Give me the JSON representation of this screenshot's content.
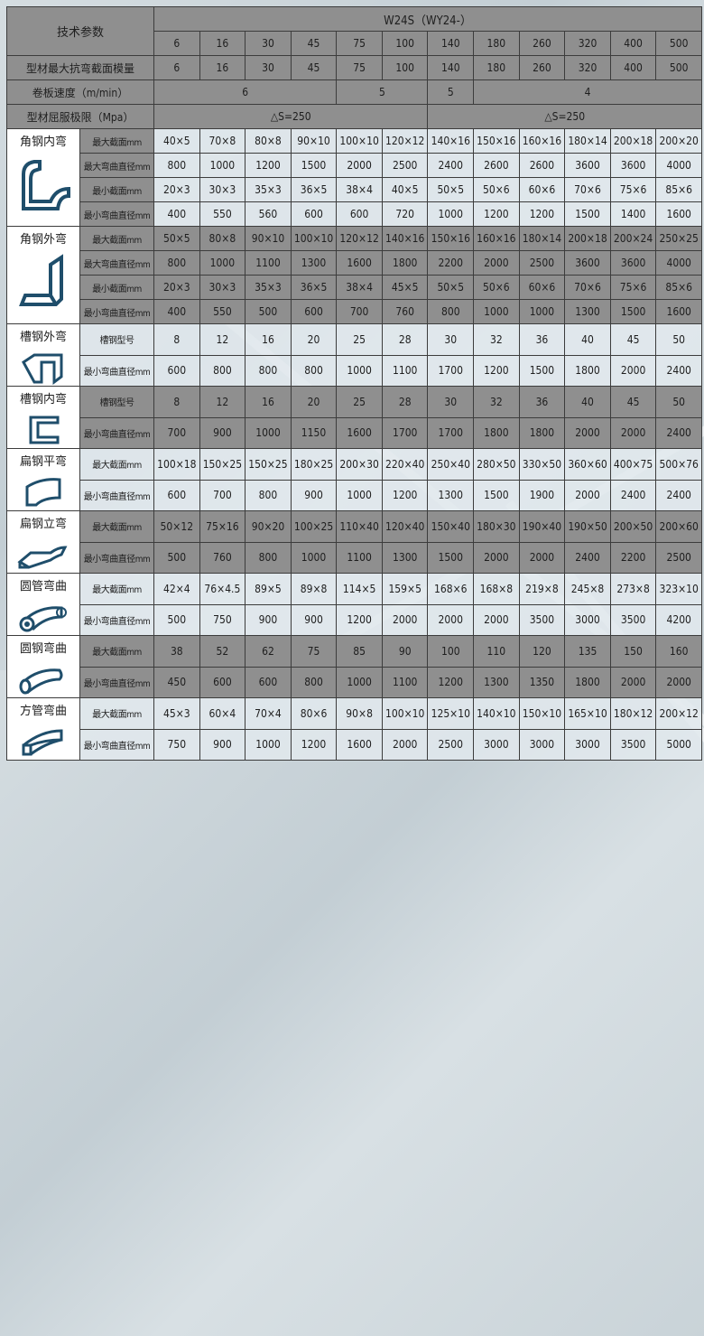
{
  "header": {
    "title": "技术参数",
    "model": "W24S（WY24-）",
    "columns": [
      "6",
      "16",
      "30",
      "45",
      "75",
      "100",
      "140",
      "180",
      "260",
      "320",
      "400",
      "500"
    ]
  },
  "params": [
    {
      "label": "型材最大抗弯截面模量",
      "cells": [
        {
          "v": "6",
          "span": 1
        },
        {
          "v": "16",
          "span": 1
        },
        {
          "v": "30",
          "span": 1
        },
        {
          "v": "45",
          "span": 1
        },
        {
          "v": "75",
          "span": 1
        },
        {
          "v": "100",
          "span": 1
        },
        {
          "v": "140",
          "span": 1
        },
        {
          "v": "180",
          "span": 1
        },
        {
          "v": "260",
          "span": 1
        },
        {
          "v": "320",
          "span": 1
        },
        {
          "v": "400",
          "span": 1
        },
        {
          "v": "500",
          "span": 1
        }
      ]
    },
    {
      "label": "卷板速度（m/min）",
      "cells": [
        {
          "v": "6",
          "span": 4
        },
        {
          "v": "5",
          "span": 2
        },
        {
          "v": "5",
          "span": 1
        },
        {
          "v": "4",
          "span": 5
        }
      ]
    },
    {
      "label": "型材屈服极限（Mpa）",
      "cells": [
        {
          "v": "△S=250",
          "span": 6
        },
        {
          "v": "△S=250",
          "span": 6
        }
      ]
    }
  ],
  "sections": [
    {
      "name": "角钢内弯",
      "icon": "angle-inner-bend-icon",
      "shade": "light",
      "rows": [
        {
          "label": "最大截面mm",
          "values": [
            "40×5",
            "70×8",
            "80×8",
            "90×10",
            "100×10",
            "120×12",
            "140×16",
            "150×16",
            "160×16",
            "180×14",
            "200×18",
            "200×20"
          ]
        },
        {
          "label": "最大弯曲直径mm",
          "values": [
            "800",
            "1000",
            "1200",
            "1500",
            "2000",
            "2500",
            "2400",
            "2600",
            "2600",
            "3600",
            "3600",
            "4000"
          ]
        },
        {
          "label": "最小截面mm",
          "values": [
            "20×3",
            "30×3",
            "35×3",
            "36×5",
            "38×4",
            "40×5",
            "50×5",
            "50×6",
            "60×6",
            "70×6",
            "75×6",
            "85×6"
          ]
        },
        {
          "label": "最小弯曲直径mm",
          "values": [
            "400",
            "550",
            "560",
            "600",
            "600",
            "720",
            "1000",
            "1200",
            "1200",
            "1500",
            "1400",
            "1600"
          ]
        }
      ]
    },
    {
      "name": "角钢外弯",
      "icon": "angle-outer-bend-icon",
      "shade": "gray",
      "rows": [
        {
          "label": "最大截面mm",
          "values": [
            "50×5",
            "80×8",
            "90×10",
            "100×10",
            "120×12",
            "140×16",
            "150×16",
            "160×16",
            "180×14",
            "200×18",
            "200×24",
            "250×25"
          ]
        },
        {
          "label": "最大弯曲直径mm",
          "values": [
            "800",
            "1000",
            "1100",
            "1300",
            "1600",
            "1800",
            "2200",
            "2000",
            "2500",
            "3600",
            "3600",
            "4000"
          ]
        },
        {
          "label": "最小截面mm",
          "values": [
            "20×3",
            "30×3",
            "35×3",
            "36×5",
            "38×4",
            "45×5",
            "50×5",
            "50×6",
            "60×6",
            "70×6",
            "75×6",
            "85×6"
          ]
        },
        {
          "label": "最小弯曲直径mm",
          "values": [
            "400",
            "550",
            "500",
            "600",
            "700",
            "760",
            "800",
            "1000",
            "1000",
            "1300",
            "1500",
            "1600"
          ]
        }
      ]
    },
    {
      "name": "槽钢外弯",
      "icon": "channel-outer-bend-icon",
      "shade": "light",
      "rows": [
        {
          "label": "槽钢型号",
          "values": [
            "8",
            "12",
            "16",
            "20",
            "25",
            "28",
            "30",
            "32",
            "36",
            "40",
            "45",
            "50"
          ]
        },
        {
          "label": "最小弯曲直径mm",
          "values": [
            "600",
            "800",
            "800",
            "800",
            "1000",
            "1100",
            "1700",
            "1200",
            "1500",
            "1800",
            "2000",
            "2400"
          ]
        }
      ]
    },
    {
      "name": "槽钢内弯",
      "icon": "channel-inner-bend-icon",
      "shade": "gray",
      "rows": [
        {
          "label": "槽钢型号",
          "values": [
            "8",
            "12",
            "16",
            "20",
            "25",
            "28",
            "30",
            "32",
            "36",
            "40",
            "45",
            "50"
          ]
        },
        {
          "label": "最小弯曲直径mm",
          "values": [
            "700",
            "900",
            "1000",
            "1150",
            "1600",
            "1700",
            "1700",
            "1800",
            "1800",
            "2000",
            "2000",
            "2400"
          ]
        }
      ]
    },
    {
      "name": "扁钢平弯",
      "icon": "flat-steel-flat-bend-icon",
      "shade": "light",
      "rows": [
        {
          "label": "最大截面mm",
          "values": [
            "100×18",
            "150×25",
            "150×25",
            "180×25",
            "200×30",
            "220×40",
            "250×40",
            "280×50",
            "330×50",
            "360×60",
            "400×75",
            "500×76"
          ]
        },
        {
          "label": "最小弯曲直径mm",
          "values": [
            "600",
            "700",
            "800",
            "900",
            "1000",
            "1200",
            "1300",
            "1500",
            "1900",
            "2000",
            "2400",
            "2400"
          ]
        }
      ]
    },
    {
      "name": "扁钢立弯",
      "icon": "flat-steel-edge-bend-icon",
      "shade": "gray",
      "rows": [
        {
          "label": "最大截面mm",
          "values": [
            "50×12",
            "75×16",
            "90×20",
            "100×25",
            "110×40",
            "120×40",
            "150×40",
            "180×30",
            "190×40",
            "190×50",
            "200×50",
            "200×60"
          ]
        },
        {
          "label": "最小弯曲直径mm",
          "values": [
            "500",
            "760",
            "800",
            "1000",
            "1100",
            "1300",
            "1500",
            "2000",
            "2000",
            "2400",
            "2200",
            "2500"
          ]
        }
      ]
    },
    {
      "name": "圆管弯曲",
      "icon": "round-pipe-bend-icon",
      "shade": "light",
      "rows": [
        {
          "label": "最大截面mm",
          "values": [
            "42×4",
            "76×4.5",
            "89×5",
            "89×8",
            "114×5",
            "159×5",
            "168×6",
            "168×8",
            "219×8",
            "245×8",
            "273×8",
            "323×10"
          ]
        },
        {
          "label": "最小弯曲直径mm",
          "values": [
            "500",
            "750",
            "900",
            "900",
            "1200",
            "2000",
            "2000",
            "2000",
            "3500",
            "3000",
            "3500",
            "4200"
          ]
        }
      ]
    },
    {
      "name": "圆钢弯曲",
      "icon": "round-bar-bend-icon",
      "shade": "gray",
      "rows": [
        {
          "label": "最大截面mm",
          "values": [
            "38",
            "52",
            "62",
            "75",
            "85",
            "90",
            "100",
            "110",
            "120",
            "135",
            "150",
            "160"
          ]
        },
        {
          "label": "最小弯曲直径mm",
          "values": [
            "450",
            "600",
            "600",
            "800",
            "1000",
            "1100",
            "1200",
            "1300",
            "1350",
            "1800",
            "2000",
            "2000"
          ]
        }
      ]
    },
    {
      "name": "方管弯曲",
      "icon": "square-tube-bend-icon",
      "shade": "light",
      "rows": [
        {
          "label": "最大截面mm",
          "values": [
            "45×3",
            "60×4",
            "70×4",
            "80×6",
            "90×8",
            "100×10",
            "125×10",
            "140×10",
            "150×10",
            "165×10",
            "180×12",
            "200×12"
          ]
        },
        {
          "label": "最小弯曲直径mm",
          "values": [
            "750",
            "900",
            "1000",
            "1200",
            "1600",
            "2000",
            "2500",
            "3000",
            "3000",
            "3000",
            "3500",
            "5000"
          ]
        }
      ]
    }
  ],
  "colors": {
    "header_gray": "#8f8f8f",
    "light_cell": "#e2e9ed",
    "icon_blue": "#1f4e6b"
  }
}
